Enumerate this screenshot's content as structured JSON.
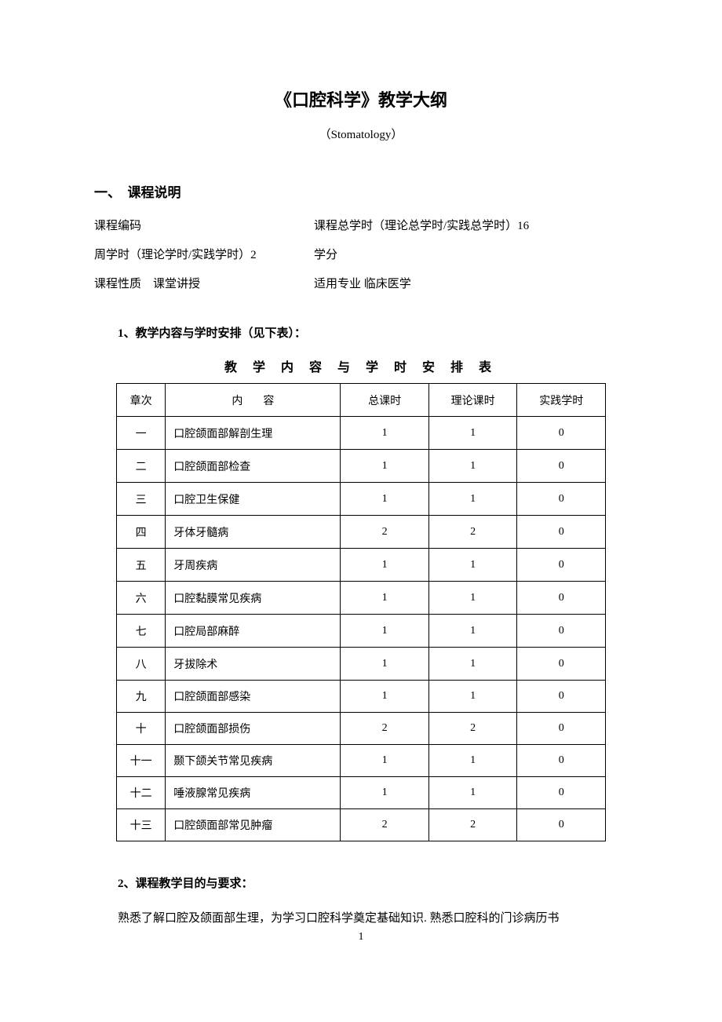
{
  "main_title": "《口腔科学》教学大纲",
  "subtitle": "（Stomatology）",
  "section1": {
    "header": "一、　课程说明",
    "row1_left": "课程编码",
    "row1_right": "课程总学时（理论总学时/实践总学时）16",
    "row2_left": "周学时（理论学时/实践学时）2",
    "row2_right": "学分",
    "row3_left": "课程性质　课堂讲授",
    "row3_right": "适用专业 临床医学"
  },
  "heading1": "1、教学内容与学时安排（见下表）：",
  "table_title": "教 学 内 容 与 学 时 安 排 表",
  "table": {
    "col_chapter": "章次",
    "col_content_left": "内",
    "col_content_right": "容",
    "col_total": "总课时",
    "col_theory": "理论课时",
    "col_practice": "实践学时",
    "rows": [
      {
        "ch": "一",
        "content": "口腔颌面部解剖生理",
        "total": "1",
        "theory": "1",
        "practice": "0",
        "tall": true
      },
      {
        "ch": "二",
        "content": "口腔颌面部检查",
        "total": "1",
        "theory": "1",
        "practice": "0",
        "tall": true
      },
      {
        "ch": "三",
        "content": "口腔卫生保健",
        "total": "1",
        "theory": "1",
        "practice": "0",
        "tall": true
      },
      {
        "ch": "四",
        "content": "牙体牙髓病",
        "total": "2",
        "theory": "2",
        "practice": "0",
        "tall": true
      },
      {
        "ch": "五",
        "content": "牙周疾病",
        "total": "1",
        "theory": "1",
        "practice": "0",
        "tall": true
      },
      {
        "ch": "六",
        "content": "口腔黏膜常见疾病",
        "total": "1",
        "theory": "1",
        "practice": "0",
        "tall": true
      },
      {
        "ch": "七",
        "content": "口腔局部麻醉",
        "total": "1",
        "theory": "1",
        "practice": "0",
        "tall": true
      },
      {
        "ch": "八",
        "content": "牙拔除术",
        "total": "1",
        "theory": "1",
        "practice": "0",
        "tall": true
      },
      {
        "ch": "九",
        "content": "口腔颌面部感染",
        "total": "1",
        "theory": "1",
        "practice": "0",
        "tall": false
      },
      {
        "ch": "十",
        "content": "口腔颌面部损伤",
        "total": "2",
        "theory": "2",
        "practice": "0",
        "tall": false
      },
      {
        "ch": "十一",
        "content": "颞下颌关节常见疾病",
        "total": "1",
        "theory": "1",
        "practice": "0",
        "tall": false
      },
      {
        "ch": "十二",
        "content": "唾液腺常见疾病",
        "total": "1",
        "theory": "1",
        "practice": "0",
        "tall": false
      },
      {
        "ch": "十三",
        "content": "口腔颌面部常见肿瘤",
        "total": "2",
        "theory": "2",
        "practice": "0",
        "tall": false
      }
    ]
  },
  "heading2": "2、课程教学目的与要求：",
  "body_text": "熟悉了解口腔及颌面部生理，为学习口腔科学奠定基础知识. 熟悉口腔科的门诊病历书",
  "page_number": "1",
  "colors": {
    "background": "#ffffff",
    "text": "#000000",
    "border": "#000000"
  },
  "typography": {
    "title_fontsize": 22,
    "body_fontsize": 15,
    "table_fontsize": 14,
    "font_family": "SimSun"
  }
}
